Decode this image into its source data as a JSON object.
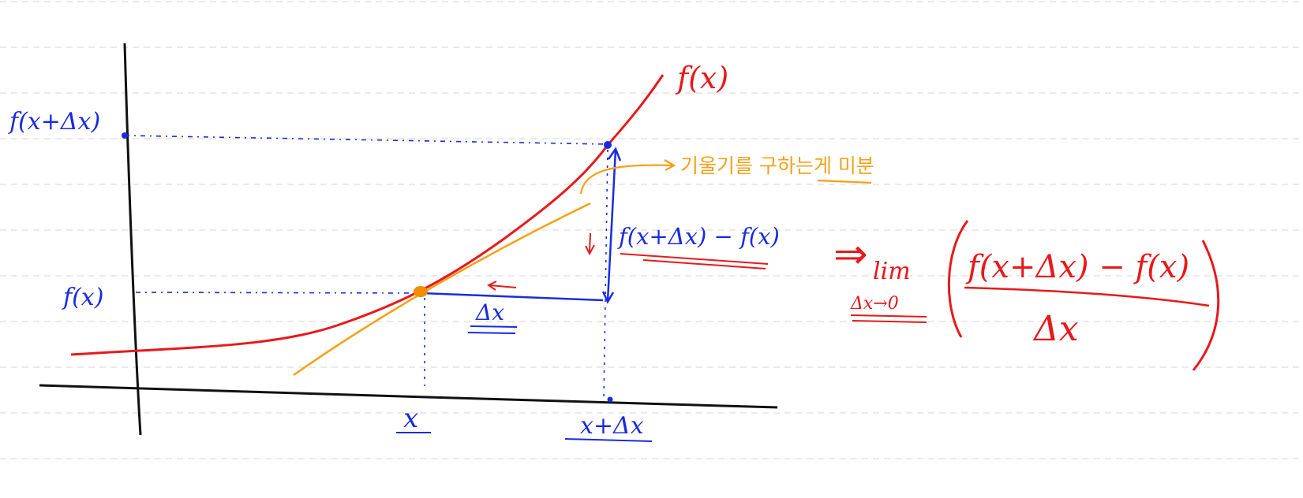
{
  "colors": {
    "curve": "#e8191b",
    "tangent": "#f5a01a",
    "annotation": "#1a2be0",
    "axes": "#111111",
    "ruled_lines": "#d6d6d6",
    "point": "#f28c00"
  },
  "diagram": {
    "y_label_top": "f(x+Δx)",
    "y_label_fx": "f(x)",
    "x_label_x": "x",
    "x_label_x_dx": "x+Δx",
    "curve_label": "f(x)",
    "delta_x_label": "Δx",
    "diff_label": "f(x+Δx) − f(x)",
    "tangent_note": "기울기를 구하는게 미분"
  },
  "formula": {
    "implies": "⇒",
    "lim": "lim",
    "lim_sub": "Δx→0",
    "numerator": "f(x+Δx) − f(x)",
    "denominator": "Δx"
  }
}
